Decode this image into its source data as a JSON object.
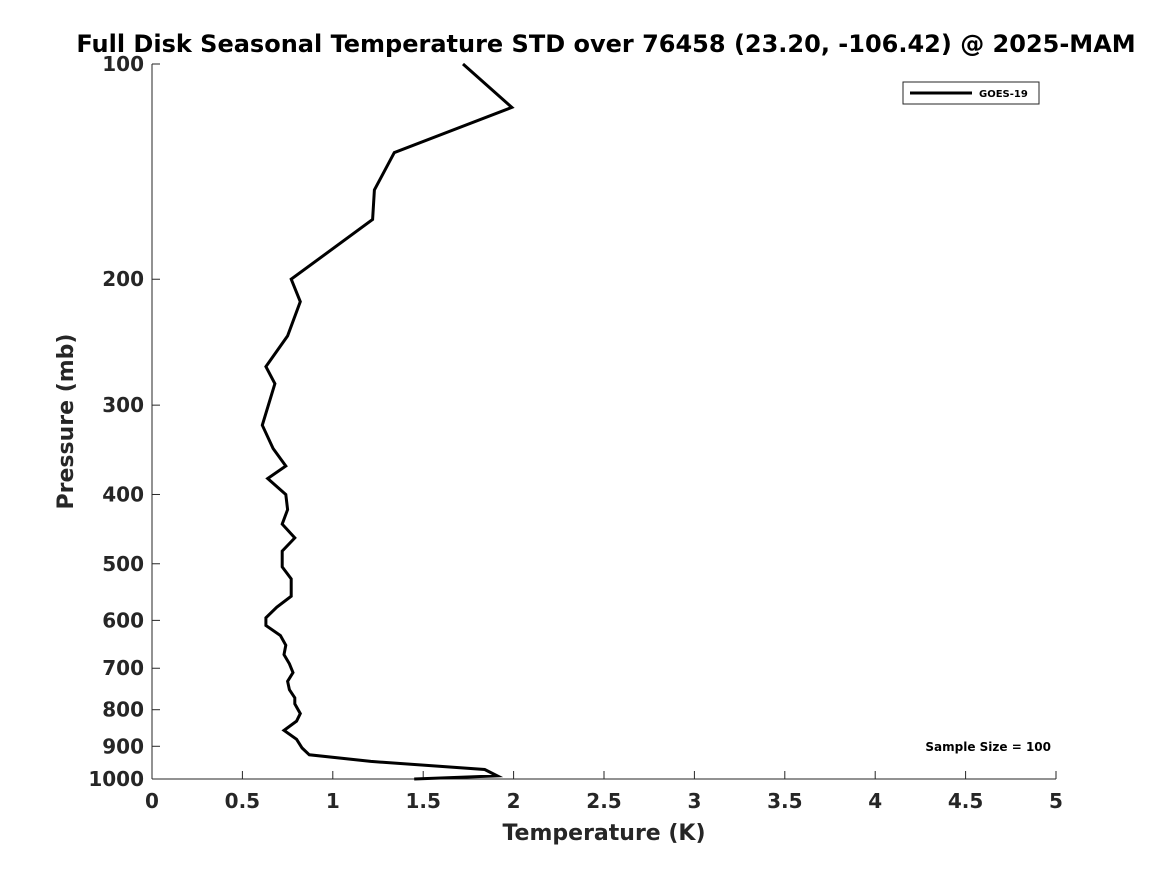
{
  "chart_data": {
    "type": "line",
    "title": "Full Disk Seasonal Temperature STD over 76458 (23.20, -106.42) @ 2025-MAM",
    "xlabel": "Temperature (K)",
    "ylabel": "Pressure (mb)",
    "xlim": [
      0,
      5
    ],
    "ylim": [
      100,
      1000
    ],
    "y_scale": "log",
    "y_reversed": true,
    "grid": false,
    "legend_position": "top-right",
    "x_ticks": [
      "0",
      "0.5",
      "1",
      "1.5",
      "2",
      "2.5",
      "3",
      "3.5",
      "4",
      "4.5",
      "5"
    ],
    "y_ticks": [
      "100",
      "200",
      "300",
      "400",
      "500",
      "600",
      "700",
      "800",
      "900",
      "1000"
    ],
    "annotation": "Sample Size = 100",
    "line_color": "#000000",
    "series": [
      {
        "name": "GOES-19",
        "x": [
          1.72,
          1.99,
          1.34,
          1.23,
          1.22,
          0.77,
          0.82,
          0.75,
          0.63,
          0.68,
          0.61,
          0.67,
          0.74,
          0.64,
          0.74,
          0.75,
          0.72,
          0.79,
          0.72,
          0.72,
          0.77,
          0.77,
          0.69,
          0.63,
          0.63,
          0.71,
          0.74,
          0.73,
          0.76,
          0.78,
          0.75,
          0.76,
          0.79,
          0.79,
          0.82,
          0.8,
          0.73,
          0.8,
          0.83,
          0.87,
          1.21,
          1.84,
          1.91,
          1.45
        ],
        "y": [
          100,
          115,
          133,
          150,
          165,
          200,
          215,
          240,
          265,
          280,
          320,
          345,
          365,
          380,
          400,
          420,
          440,
          460,
          480,
          505,
          525,
          555,
          575,
          595,
          610,
          630,
          650,
          670,
          690,
          710,
          730,
          750,
          770,
          785,
          810,
          830,
          855,
          880,
          905,
          925,
          945,
          970,
          990,
          1010
        ]
      }
    ]
  }
}
